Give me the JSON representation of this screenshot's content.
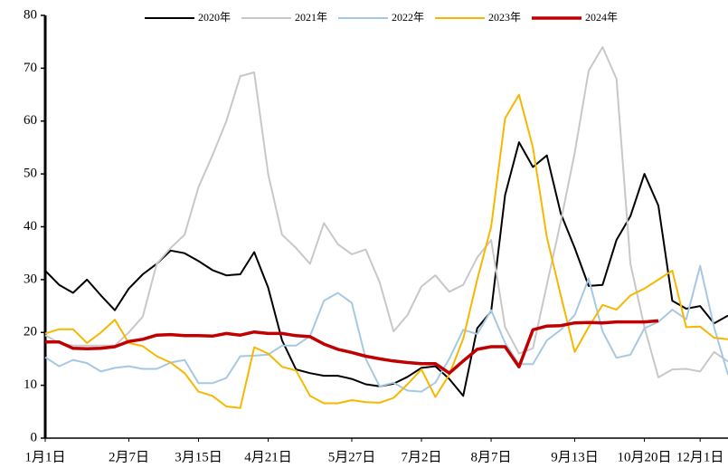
{
  "chart_data": {
    "type": "line",
    "categories": [
      "1月1日",
      null,
      null,
      null,
      null,
      null,
      "2月7日",
      null,
      null,
      null,
      null,
      "3月15日",
      null,
      null,
      null,
      null,
      "4月21日",
      null,
      null,
      null,
      null,
      null,
      "5月27日",
      null,
      null,
      null,
      null,
      "7月2日",
      null,
      null,
      null,
      null,
      "8月7日",
      null,
      null,
      null,
      null,
      null,
      "9月13日",
      null,
      null,
      null,
      null,
      "10月20日",
      null,
      null,
      null,
      "12月1日",
      null,
      null
    ],
    "series": [
      {
        "name": "2020年",
        "color": "#000000",
        "values": [
          31.7,
          29,
          27.5,
          30,
          27,
          24.2,
          28.3,
          31,
          33,
          35.5,
          35,
          33.5,
          31.8,
          30.8,
          31,
          35.2,
          28.5,
          18.5,
          13,
          12.3,
          11.8,
          11.8,
          11.2,
          10.2,
          9.8,
          10.3,
          11.6,
          13.3,
          13.6,
          11.2,
          8,
          20.8,
          24,
          46,
          56,
          51.3,
          53.5,
          42.5,
          36,
          28.8,
          29,
          37.5,
          42,
          50,
          44,
          26,
          24.5,
          25,
          21.7,
          23.2
        ]
      },
      {
        "name": "2021年",
        "color": "#c8c8c8",
        "values": [
          19.5,
          18,
          17.5,
          17.5,
          17.5,
          17.5,
          20,
          23,
          33,
          36,
          38.5,
          47.5,
          53.5,
          60,
          68.5,
          69.2,
          50,
          38.5,
          36,
          33,
          40.7,
          36.7,
          34.8,
          35.7,
          29.5,
          20.2,
          23.3,
          28.7,
          30.8,
          27.7,
          29,
          34.2,
          37.5,
          21,
          16,
          17,
          29,
          41,
          54,
          69.5,
          74,
          68,
          33,
          21,
          11.5,
          13,
          13.1,
          12.6,
          16.3,
          14.5
        ]
      },
      {
        "name": "2022年",
        "color": "#a5c8e4",
        "values": [
          15.3,
          13.6,
          14.8,
          14.2,
          12.6,
          13.3,
          13.6,
          13.1,
          13.1,
          14.3,
          14.8,
          10.4,
          10.4,
          11.4,
          15.5,
          15.6,
          15.8,
          17.5,
          17.5,
          19.3,
          26,
          27.5,
          25.6,
          15,
          9.8,
          10.5,
          9,
          8.8,
          10.5,
          15,
          20.5,
          19.7,
          24.2,
          18,
          14,
          14,
          18.5,
          20.5,
          23.3,
          30.2,
          20.2,
          15.2,
          15.8,
          20.8,
          22,
          24.3,
          22.5,
          32.6,
          21,
          12
        ]
      },
      {
        "name": "2023年",
        "color": "#f5b800",
        "values": [
          19.8,
          20.6,
          20.6,
          18,
          20,
          22.4,
          18,
          17.4,
          15.5,
          14.3,
          12.3,
          8.8,
          8,
          6,
          5.7,
          17.2,
          16,
          13.5,
          12.8,
          8,
          6.6,
          6.6,
          7.2,
          6.8,
          6.7,
          7.6,
          10.2,
          13,
          7.8,
          12,
          18.8,
          30,
          40,
          60.5,
          65,
          55,
          38,
          27,
          16.3,
          21,
          25.2,
          24.3,
          27,
          28.3,
          30,
          31.7,
          21,
          21.1,
          19,
          18.7
        ]
      },
      {
        "name": "2024年",
        "color": "#c00000",
        "values": [
          18.2,
          18.2,
          17,
          16.9,
          17,
          17.3,
          18.3,
          18.7,
          19.5,
          19.6,
          19.4,
          19.4,
          19.3,
          19.8,
          19.5,
          20.1,
          19.8,
          19.8,
          19.4,
          19.2,
          17.8,
          16.8,
          16.2,
          15.5,
          15,
          14.6,
          14.3,
          14.1,
          14.1,
          12.3,
          14.6,
          16.8,
          17.3,
          17.3,
          13.5,
          20.5,
          21.2,
          21.3,
          21.8,
          21.9,
          21.8,
          22,
          22,
          22,
          22.2,
          null,
          null,
          null,
          null,
          null
        ]
      }
    ],
    "ylim": [
      0,
      80
    ],
    "yticks": [
      0,
      10,
      20,
      30,
      40,
      50,
      60,
      70,
      80
    ],
    "grid": false
  }
}
